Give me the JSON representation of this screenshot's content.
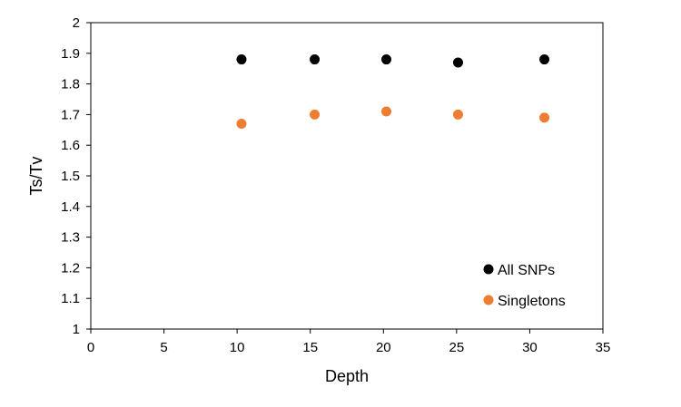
{
  "chart_data": {
    "type": "scatter",
    "title": "",
    "xlabel": "Depth",
    "ylabel": "Ts/Tv",
    "xlim": [
      0,
      35
    ],
    "ylim": [
      1,
      2
    ],
    "xticks": [
      0,
      5,
      10,
      15,
      20,
      25,
      30,
      35
    ],
    "yticks": [
      1,
      1.1,
      1.2,
      1.3,
      1.4,
      1.5,
      1.6,
      1.7,
      1.8,
      1.9,
      2
    ],
    "xtick_labels": [
      "0",
      "5",
      "10",
      "15",
      "20",
      "25",
      "30",
      "35"
    ],
    "ytick_labels": [
      "1",
      "1.1",
      "1.2",
      "1.3",
      "1.4",
      "1.5",
      "1.6",
      "1.7",
      "1.8",
      "1.9",
      "2"
    ],
    "grid": false,
    "legend_position": "bottom-right",
    "series": [
      {
        "name": "All SNPs",
        "color": "#000000",
        "points": [
          {
            "x": 10.3,
            "y": 1.88
          },
          {
            "x": 15.3,
            "y": 1.88
          },
          {
            "x": 20.2,
            "y": 1.88
          },
          {
            "x": 25.1,
            "y": 1.87
          },
          {
            "x": 31.0,
            "y": 1.88
          }
        ]
      },
      {
        "name": "Singletons",
        "color": "#ED7D31",
        "points": [
          {
            "x": 10.3,
            "y": 1.67
          },
          {
            "x": 15.3,
            "y": 1.7
          },
          {
            "x": 20.2,
            "y": 1.71
          },
          {
            "x": 25.1,
            "y": 1.7
          },
          {
            "x": 31.0,
            "y": 1.69
          }
        ]
      }
    ]
  }
}
